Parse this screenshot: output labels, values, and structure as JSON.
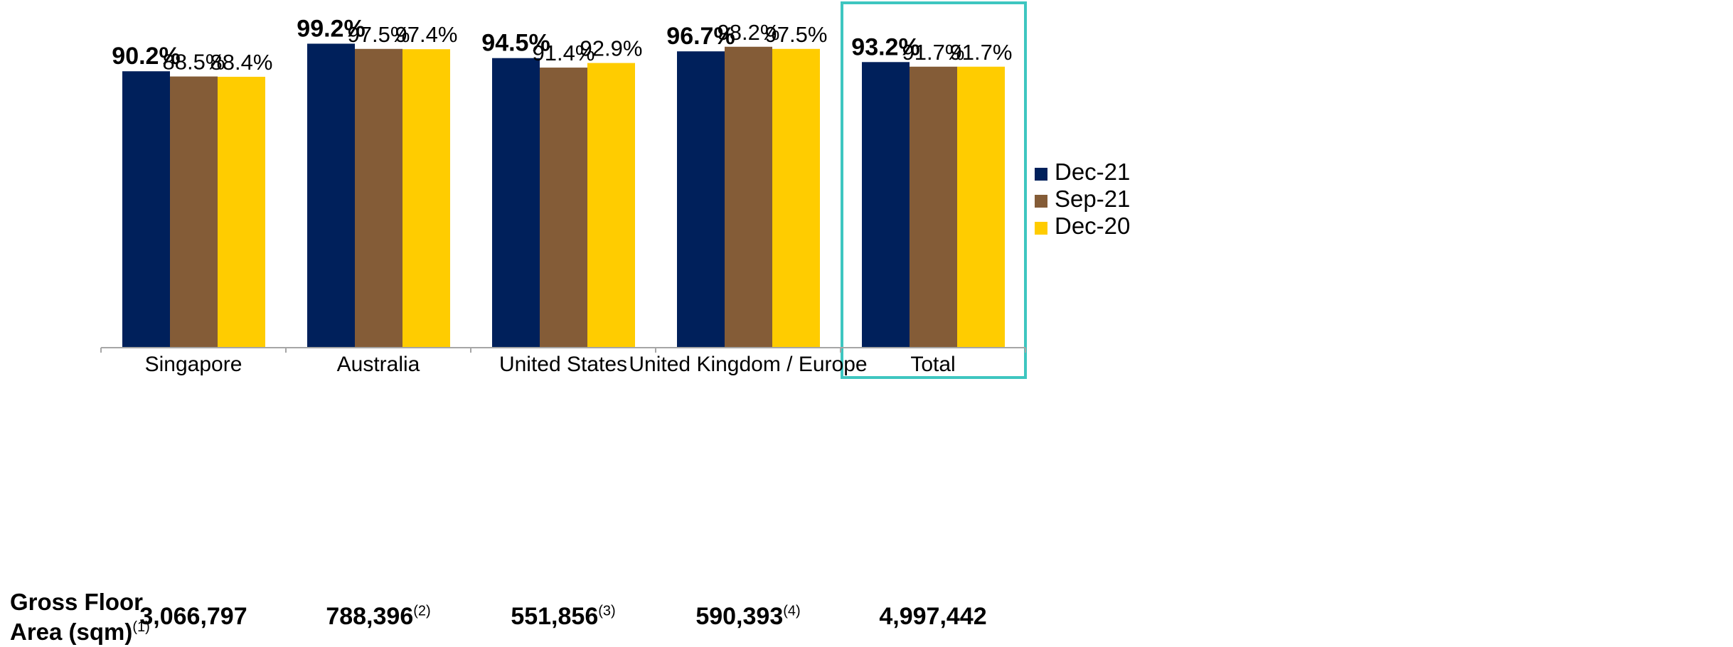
{
  "colors": {
    "Dec-21": "#00205b",
    "Sep-21": "#845c37",
    "Dec-20": "#ffcc00",
    "highlight_box": "#3ec6c0",
    "axis": "#a6a6a6"
  },
  "chart_data": {
    "type": "bar",
    "categories": [
      "Singapore",
      "Australia",
      "United States",
      "United Kingdom / Europe",
      "Total"
    ],
    "series": [
      {
        "name": "Dec-21",
        "values": [
          90.2,
          99.2,
          94.5,
          96.7,
          93.2
        ],
        "labels": [
          "90.2%",
          "99.2%",
          "94.5%",
          "96.7%",
          "93.2%"
        ]
      },
      {
        "name": "Sep-21",
        "values": [
          88.5,
          97.5,
          91.4,
          98.2,
          91.7
        ],
        "labels": [
          "88.5%",
          "97.5%",
          "91.4%",
          "98.2%",
          "91.7%"
        ]
      },
      {
        "name": "Dec-20",
        "values": [
          88.4,
          97.4,
          92.9,
          97.5,
          91.7
        ],
        "labels": [
          "88.4%",
          "97.4%",
          "92.9%",
          "97.5%",
          "91.7%"
        ]
      }
    ],
    "ylim": [
      0,
      100
    ],
    "highlighted_category": "Total",
    "legend": "right",
    "grid": false
  },
  "gross_floor_area": {
    "title_line1": "Gross Floor",
    "title_line2": "Area (sqm)",
    "title_note": "(1)",
    "values": [
      {
        "value": "3,066,797",
        "note": ""
      },
      {
        "value": "788,396",
        "note": "(2)"
      },
      {
        "value": "551,856",
        "note": "(3)"
      },
      {
        "value": "590,393",
        "note": "(4)"
      },
      {
        "value": "4,997,442",
        "note": ""
      }
    ]
  }
}
